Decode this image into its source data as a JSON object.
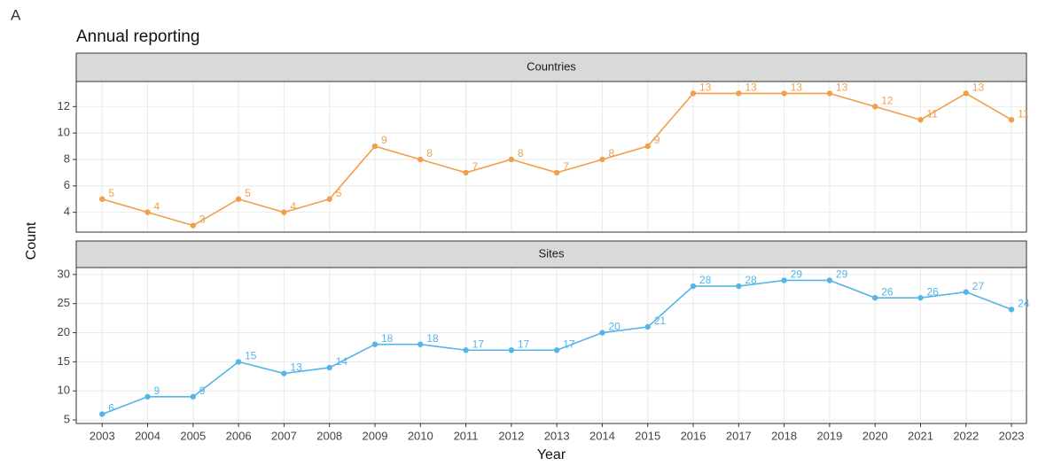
{
  "panel_label": "A",
  "title": "Annual reporting",
  "y_label": "Count",
  "x_label": "Year",
  "chart_data": [
    {
      "type": "line",
      "title": "Countries",
      "color": "#f0a04b",
      "x": [
        2003,
        2004,
        2005,
        2006,
        2007,
        2008,
        2009,
        2010,
        2011,
        2012,
        2013,
        2014,
        2015,
        2016,
        2017,
        2018,
        2019,
        2020,
        2021,
        2022,
        2023
      ],
      "values": [
        5,
        4,
        3,
        5,
        4,
        5,
        9,
        8,
        7,
        8,
        7,
        8,
        9,
        13,
        13,
        13,
        13,
        12,
        11,
        13,
        11
      ],
      "xlim": [
        2002.43,
        2023.33
      ],
      "ylim": [
        2.5,
        13.9
      ],
      "yticks": [
        4,
        6,
        8,
        10,
        12
      ],
      "grid": true
    },
    {
      "type": "line",
      "title": "Sites",
      "color": "#56b4e9",
      "x": [
        2003,
        2004,
        2005,
        2006,
        2007,
        2008,
        2009,
        2010,
        2011,
        2012,
        2013,
        2014,
        2015,
        2016,
        2017,
        2018,
        2019,
        2020,
        2021,
        2022,
        2023
      ],
      "values": [
        6,
        9,
        9,
        15,
        13,
        14,
        18,
        18,
        17,
        17,
        17,
        20,
        21,
        28,
        28,
        29,
        29,
        26,
        26,
        27,
        24
      ],
      "xlim": [
        2002.43,
        2023.33
      ],
      "ylim": [
        4.4,
        31.2
      ],
      "yticks": [
        5,
        10,
        15,
        20,
        25,
        30
      ],
      "xticks": [
        2003,
        2004,
        2005,
        2006,
        2007,
        2008,
        2009,
        2010,
        2011,
        2012,
        2013,
        2014,
        2015,
        2016,
        2017,
        2018,
        2019,
        2020,
        2021,
        2022,
        2023
      ],
      "grid": true
    }
  ]
}
